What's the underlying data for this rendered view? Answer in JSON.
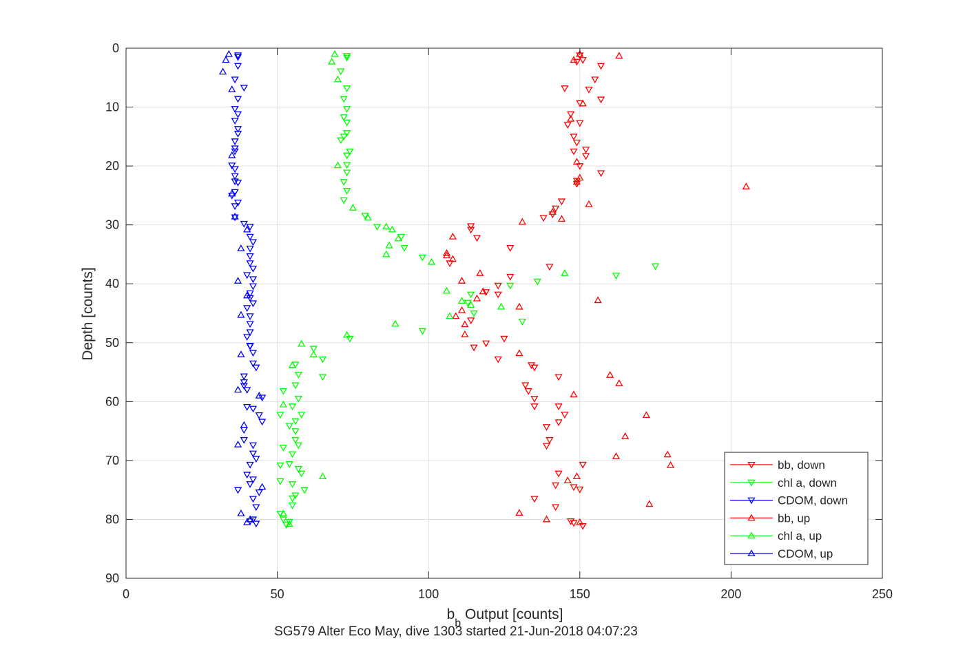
{
  "chart_data": {
    "type": "scatter",
    "xlabel": "b_b Output [counts]",
    "xlabel_main": "b",
    "xlabel_sub": "b",
    "xlabel_rest": " Output [counts]",
    "ylabel": "Depth [counts]",
    "caption": "SG579 Alter Eco May, dive 1303 started 21-Jun-2018 04:07:23",
    "xlim": [
      0,
      250
    ],
    "ylim": [
      0,
      90
    ],
    "y_reversed": true,
    "grid": true,
    "legend_position": "bottom-right",
    "xticks": [
      "0",
      "50",
      "100",
      "150",
      "200",
      "250"
    ],
    "yticks": [
      "0",
      "10",
      "20",
      "30",
      "40",
      "50",
      "60",
      "70",
      "80",
      "90"
    ],
    "series": [
      {
        "name": "bb, down",
        "color": "#ff0000",
        "marker": "triangle-down",
        "points": [
          [
            150,
            1.2
          ],
          [
            151,
            2
          ],
          [
            149,
            2.3
          ],
          [
            157,
            3
          ],
          [
            155,
            5.3
          ],
          [
            145,
            6.8
          ],
          [
            153,
            7
          ],
          [
            157,
            8.7
          ],
          [
            150,
            9.3
          ],
          [
            147,
            11.2
          ],
          [
            150,
            12.7
          ],
          [
            146,
            13
          ],
          [
            148,
            15
          ],
          [
            149,
            16
          ],
          [
            152,
            17.2
          ],
          [
            148,
            17.5
          ],
          [
            152,
            18.3
          ],
          [
            150,
            20
          ],
          [
            157,
            21.2
          ],
          [
            149,
            22.5
          ],
          [
            149,
            23
          ],
          [
            144,
            26
          ],
          [
            142,
            27.2
          ],
          [
            141,
            28.2
          ],
          [
            138,
            28.8
          ],
          [
            114,
            30.2
          ],
          [
            114,
            30.8
          ],
          [
            116,
            32.2
          ],
          [
            127,
            33.9
          ],
          [
            107,
            36.5
          ],
          [
            140,
            37.1
          ],
          [
            127,
            38.8
          ],
          [
            123,
            40.3
          ],
          [
            119,
            41.4
          ],
          [
            123,
            41.8
          ],
          [
            114,
            46.2
          ],
          [
            125,
            49.3
          ],
          [
            119,
            50.1
          ],
          [
            115,
            50.8
          ],
          [
            123,
            52.8
          ],
          [
            134,
            53.8
          ],
          [
            135,
            54.2
          ],
          [
            143,
            55.8
          ],
          [
            132,
            57.2
          ],
          [
            133,
            58.2
          ],
          [
            135,
            59.5
          ],
          [
            135,
            60.8
          ],
          [
            143,
            60.8
          ],
          [
            145,
            62.2
          ],
          [
            143,
            63.5
          ],
          [
            139,
            64.3
          ],
          [
            140,
            66.5
          ],
          [
            139,
            67.5
          ],
          [
            151,
            70.7
          ],
          [
            143,
            72.2
          ],
          [
            142,
            74.2
          ],
          [
            148,
            74.5
          ],
          [
            150,
            74.9
          ],
          [
            135,
            76.5
          ],
          [
            142,
            77.9
          ],
          [
            147,
            80.3
          ],
          [
            148,
            80.6
          ],
          [
            151,
            81.1
          ]
        ]
      },
      {
        "name": "chl a, down",
        "color": "#00ff00",
        "marker": "triangle-down",
        "points": [
          [
            73,
            1.3
          ],
          [
            73,
            1.6
          ],
          [
            71,
            3.9
          ],
          [
            73,
            6.8
          ],
          [
            72,
            8.6
          ],
          [
            73,
            10.3
          ],
          [
            72,
            11.7
          ],
          [
            73,
            12.6
          ],
          [
            73,
            14.4
          ],
          [
            72,
            15
          ],
          [
            71,
            15.6
          ],
          [
            74,
            17.5
          ],
          [
            73,
            18.2
          ],
          [
            73,
            19.8
          ],
          [
            73,
            21.1
          ],
          [
            72,
            22.7
          ],
          [
            73,
            24.2
          ],
          [
            72,
            25.8
          ],
          [
            79,
            28.4
          ],
          [
            83,
            30.3
          ],
          [
            91,
            32
          ],
          [
            92,
            33.9
          ],
          [
            98,
            35.5
          ],
          [
            175,
            37
          ],
          [
            162,
            38.6
          ],
          [
            136,
            39.6
          ],
          [
            127,
            40.3
          ],
          [
            114,
            41.8
          ],
          [
            113,
            43.2
          ],
          [
            115,
            45
          ],
          [
            131,
            46.4
          ],
          [
            98,
            48
          ],
          [
            74,
            49.3
          ],
          [
            62,
            51
          ],
          [
            65,
            52.8
          ],
          [
            65,
            55.8
          ],
          [
            56,
            53.7
          ],
          [
            57,
            55.4
          ],
          [
            56,
            57.2
          ],
          [
            52,
            58.2
          ],
          [
            57,
            59.5
          ],
          [
            55,
            60.8
          ],
          [
            58,
            62.2
          ],
          [
            51,
            62.2
          ],
          [
            56,
            63.3
          ],
          [
            54,
            64.1
          ],
          [
            56,
            65
          ],
          [
            57,
            67.4
          ],
          [
            56,
            66.5
          ],
          [
            52,
            67.8
          ],
          [
            55,
            68.9
          ],
          [
            54,
            70.6
          ],
          [
            51,
            70.8
          ],
          [
            57,
            71.4
          ],
          [
            58,
            72.2
          ],
          [
            51,
            73.5
          ],
          [
            55,
            74
          ],
          [
            59,
            75
          ],
          [
            56,
            75.9
          ],
          [
            55,
            76.4
          ],
          [
            55,
            77.6
          ],
          [
            51,
            79
          ],
          [
            52,
            80
          ],
          [
            54,
            80.4
          ],
          [
            53,
            80.9
          ]
        ]
      },
      {
        "name": "CDOM, down",
        "color": "#0000ff",
        "marker": "triangle-down",
        "points": [
          [
            37,
            1.2
          ],
          [
            37,
            1.5
          ],
          [
            37,
            3
          ],
          [
            36,
            5.3
          ],
          [
            39,
            6.7
          ],
          [
            37,
            8.6
          ],
          [
            36,
            10.3
          ],
          [
            37,
            11.2
          ],
          [
            36,
            12.3
          ],
          [
            37,
            13.7
          ],
          [
            37,
            14.5
          ],
          [
            36,
            15.8
          ],
          [
            36,
            17
          ],
          [
            36,
            17.5
          ],
          [
            35,
            19.9
          ],
          [
            36,
            20.5
          ],
          [
            36,
            21.7
          ],
          [
            36,
            22.6
          ],
          [
            37,
            22.8
          ],
          [
            36,
            24.4
          ],
          [
            35,
            25
          ],
          [
            37,
            26.2
          ],
          [
            36,
            26.8
          ],
          [
            36,
            28.7
          ],
          [
            39,
            29.8
          ],
          [
            41,
            30.3
          ],
          [
            41,
            32
          ],
          [
            42,
            32.9
          ],
          [
            41,
            34
          ],
          [
            41,
            35.3
          ],
          [
            41,
            36.5
          ],
          [
            42,
            37.4
          ],
          [
            40,
            38.5
          ],
          [
            42,
            39.2
          ],
          [
            42,
            40.4
          ],
          [
            41,
            41.6
          ],
          [
            41,
            42.4
          ],
          [
            42,
            43.3
          ],
          [
            40,
            44.1
          ],
          [
            41,
            45.5
          ],
          [
            41,
            46.8
          ],
          [
            41,
            48.2
          ],
          [
            40,
            49
          ],
          [
            41,
            50.5
          ],
          [
            41,
            50.6
          ],
          [
            42,
            51.7
          ],
          [
            43,
            54.2
          ],
          [
            42,
            53.5
          ],
          [
            39,
            55.7
          ],
          [
            39,
            56.7
          ],
          [
            39,
            57.3
          ],
          [
            40,
            58
          ],
          [
            45,
            59.3
          ],
          [
            40,
            60.9
          ],
          [
            42,
            61.2
          ],
          [
            44,
            62.3
          ],
          [
            45,
            63.4
          ],
          [
            39,
            64.8
          ],
          [
            39,
            66.5
          ],
          [
            42,
            67.4
          ],
          [
            42,
            68.8
          ],
          [
            43,
            69.7
          ],
          [
            41,
            70.7
          ],
          [
            40,
            72.4
          ],
          [
            42,
            73.2
          ],
          [
            41,
            74
          ],
          [
            44,
            75.4
          ],
          [
            37,
            75
          ],
          [
            42,
            76.5
          ],
          [
            43,
            77.9
          ],
          [
            42,
            80
          ],
          [
            41,
            80.3
          ],
          [
            43,
            80.7
          ]
        ]
      },
      {
        "name": "bb, up",
        "color": "#ff0000",
        "marker": "triangle-up",
        "points": [
          [
            150,
            1
          ],
          [
            163,
            1.3
          ],
          [
            148,
            2
          ],
          [
            151,
            9.4
          ],
          [
            147,
            12
          ],
          [
            149,
            19.3
          ],
          [
            150,
            22
          ],
          [
            149,
            22.7
          ],
          [
            205,
            23.5
          ],
          [
            153,
            26.5
          ],
          [
            141,
            27.8
          ],
          [
            144,
            29
          ],
          [
            131,
            29.5
          ],
          [
            108,
            32
          ],
          [
            106,
            34.8
          ],
          [
            106,
            35.2
          ],
          [
            108,
            35.8
          ],
          [
            117,
            38.2
          ],
          [
            111,
            39.5
          ],
          [
            118,
            41.3
          ],
          [
            116,
            42.5
          ],
          [
            156,
            42.8
          ],
          [
            130,
            43.9
          ],
          [
            111,
            44.5
          ],
          [
            109,
            45.5
          ],
          [
            112,
            46.9
          ],
          [
            112,
            48.6
          ],
          [
            130,
            51.8
          ],
          [
            160,
            55.5
          ],
          [
            163,
            56.9
          ],
          [
            148,
            58.8
          ],
          [
            172,
            62.3
          ],
          [
            165,
            65.9
          ],
          [
            162,
            69.3
          ],
          [
            179,
            69
          ],
          [
            180,
            70.8
          ],
          [
            149,
            72.7
          ],
          [
            146,
            73.4
          ],
          [
            173,
            77.4
          ],
          [
            130,
            78.9
          ],
          [
            139,
            80
          ],
          [
            150,
            80.5
          ]
        ]
      },
      {
        "name": "chl a, up",
        "color": "#00ff00",
        "marker": "triangle-up",
        "points": [
          [
            69,
            1
          ],
          [
            68,
            2.3
          ],
          [
            70,
            5.3
          ],
          [
            70,
            19.9
          ],
          [
            75,
            27.1
          ],
          [
            80,
            28.8
          ],
          [
            86,
            30.3
          ],
          [
            88,
            30.8
          ],
          [
            90,
            32.3
          ],
          [
            87,
            33.5
          ],
          [
            86,
            35
          ],
          [
            101,
            36.3
          ],
          [
            145,
            38.2
          ],
          [
            106,
            41.2
          ],
          [
            111,
            42.9
          ],
          [
            114,
            43.6
          ],
          [
            124,
            43.9
          ],
          [
            107,
            45.5
          ],
          [
            89,
            46.8
          ],
          [
            73,
            48.7
          ],
          [
            58,
            50.2
          ],
          [
            62,
            52
          ],
          [
            55,
            53.8
          ],
          [
            52,
            60.5
          ],
          [
            65,
            72.7
          ],
          [
            52,
            79
          ],
          [
            54,
            80.8
          ]
        ]
      },
      {
        "name": "CDOM, up",
        "color": "#0000ff",
        "marker": "triangle-up",
        "points": [
          [
            34,
            1
          ],
          [
            33,
            2
          ],
          [
            32,
            4
          ],
          [
            35,
            7
          ],
          [
            35,
            18.2
          ],
          [
            35,
            24.7
          ],
          [
            36,
            28.6
          ],
          [
            40,
            30.8
          ],
          [
            38,
            34
          ],
          [
            37,
            39.5
          ],
          [
            40,
            42
          ],
          [
            38,
            45.3
          ],
          [
            38,
            52
          ],
          [
            37,
            58
          ],
          [
            44,
            59
          ],
          [
            39,
            64
          ],
          [
            37,
            67.3
          ],
          [
            45,
            74.5
          ],
          [
            38,
            79
          ],
          [
            40,
            80.5
          ],
          [
            41,
            80
          ]
        ]
      }
    ]
  }
}
